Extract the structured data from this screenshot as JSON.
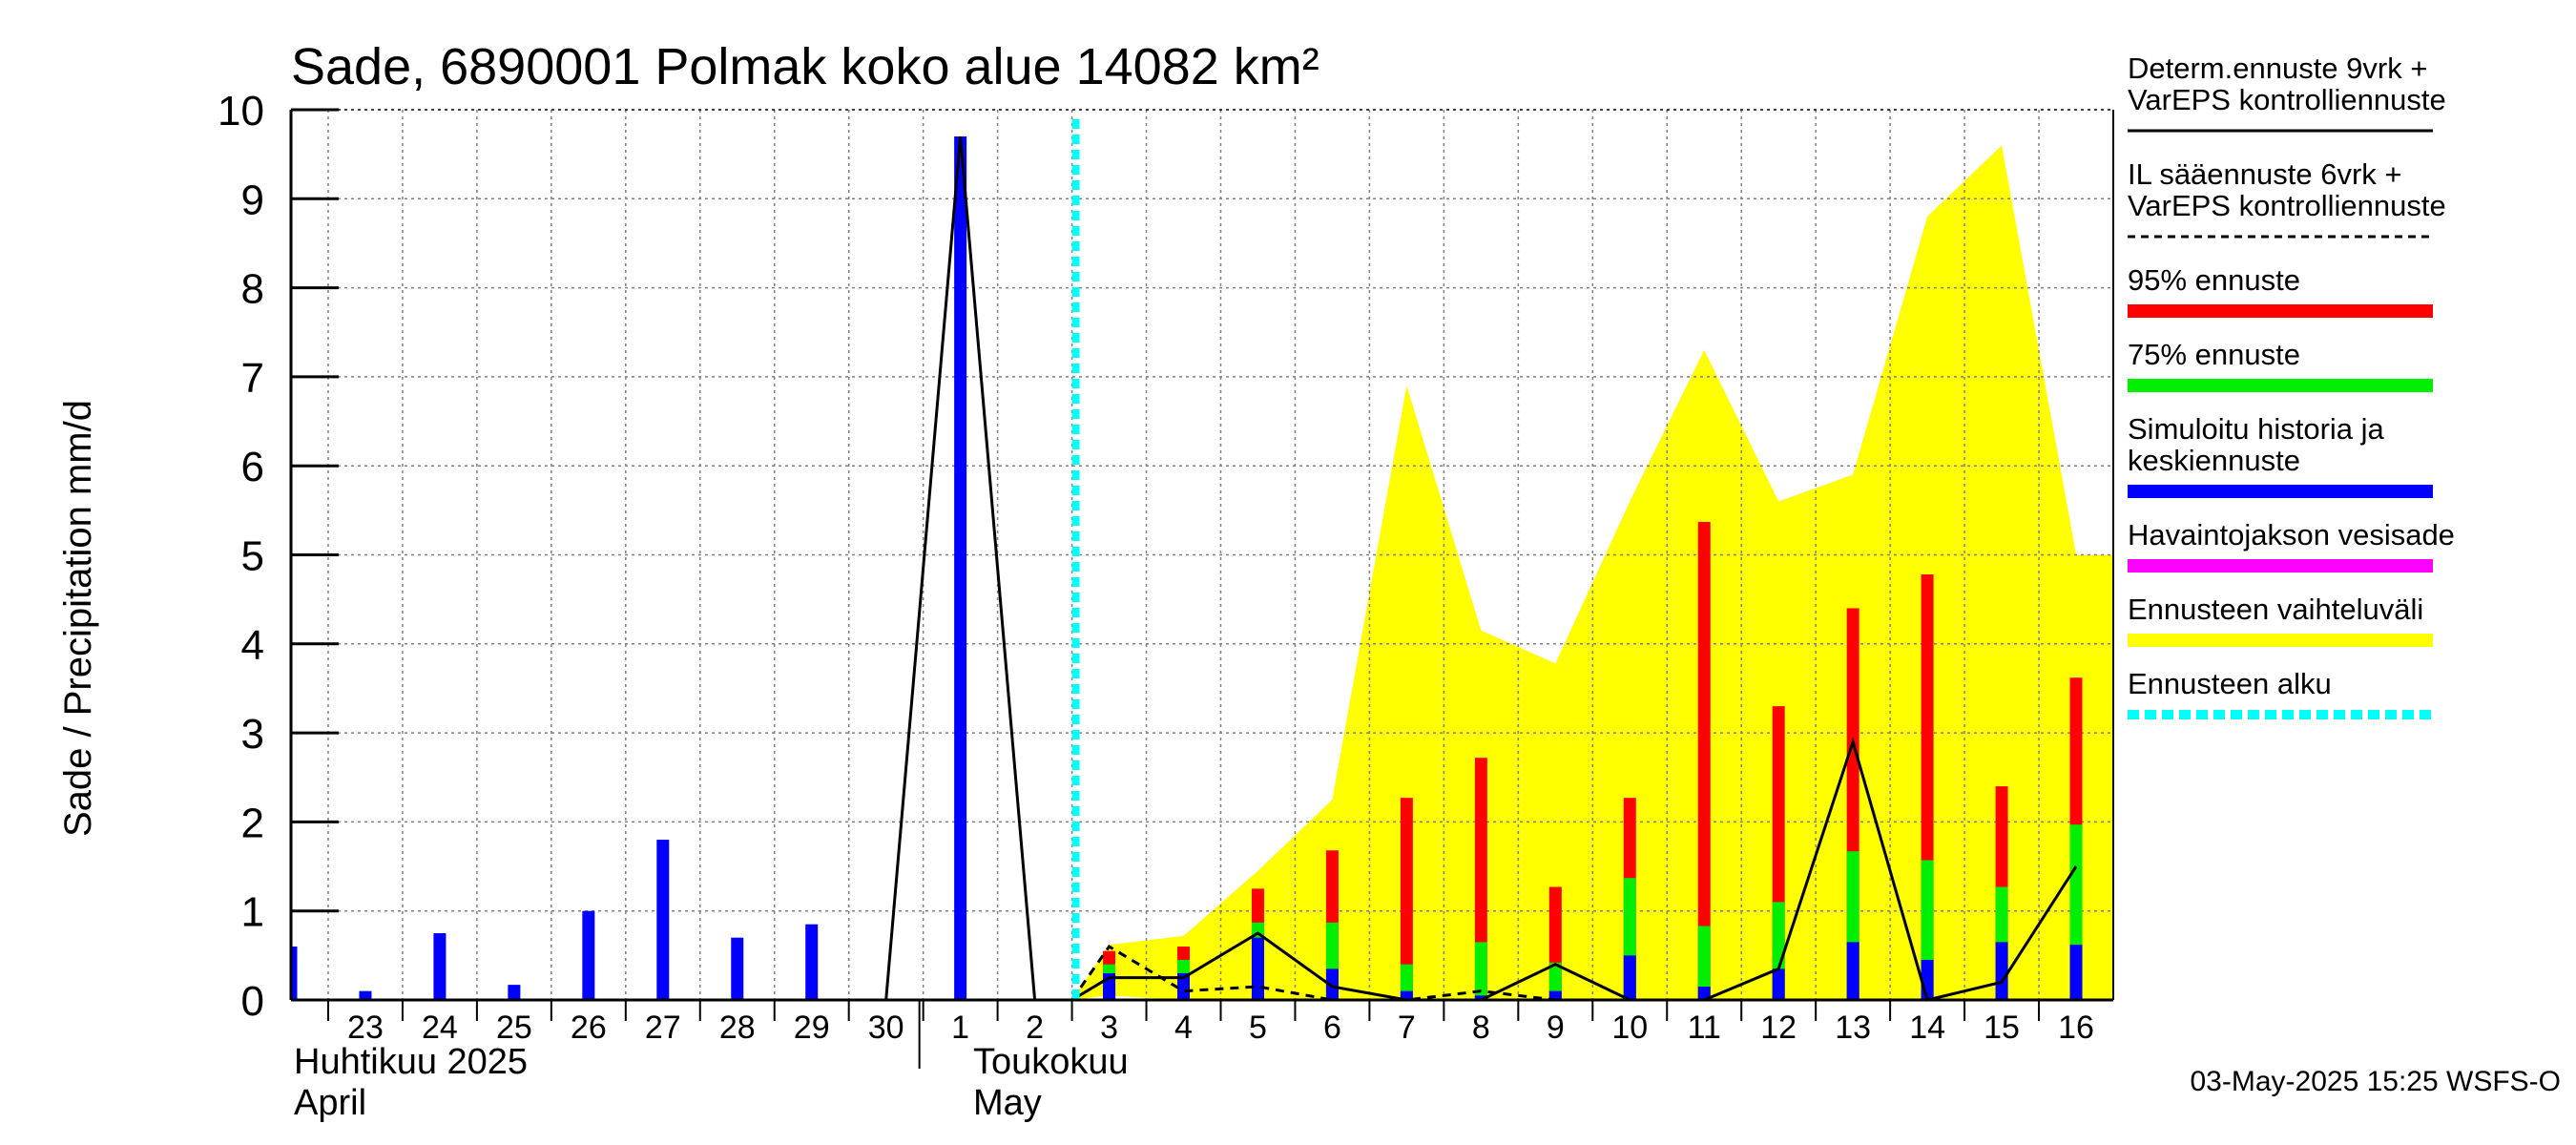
{
  "chart_data": {
    "type": "bar",
    "title": "Sade, 6890001 Polmak koko alue 14082 km²",
    "ylabel": "Sade / Precipitation   mm/d",
    "ylim": [
      0,
      10
    ],
    "yticks": [
      "0",
      "1",
      "2",
      "3",
      "4",
      "5",
      "6",
      "7",
      "8",
      "9",
      "10"
    ],
    "xlim": [
      22.5,
      47
    ],
    "day_ticks": [
      {
        "x": 23,
        "label": "23"
      },
      {
        "x": 24,
        "label": "24"
      },
      {
        "x": 25,
        "label": "25"
      },
      {
        "x": 26,
        "label": "26"
      },
      {
        "x": 27,
        "label": "27"
      },
      {
        "x": 28,
        "label": "28"
      },
      {
        "x": 29,
        "label": "29"
      },
      {
        "x": 30,
        "label": "30"
      },
      {
        "x": 31,
        "label": "1"
      },
      {
        "x": 32,
        "label": "2"
      },
      {
        "x": 33,
        "label": "3"
      },
      {
        "x": 34,
        "label": "4"
      },
      {
        "x": 35,
        "label": "5"
      },
      {
        "x": 36,
        "label": "6"
      },
      {
        "x": 37,
        "label": "7"
      },
      {
        "x": 38,
        "label": "8"
      },
      {
        "x": 39,
        "label": "9"
      },
      {
        "x": 40,
        "label": "10"
      },
      {
        "x": 41,
        "label": "11"
      },
      {
        "x": 42,
        "label": "12"
      },
      {
        "x": 43,
        "label": "13"
      },
      {
        "x": 44,
        "label": "14"
      },
      {
        "x": 45,
        "label": "15"
      },
      {
        "x": 46,
        "label": "16"
      }
    ],
    "month_labels": {
      "april_fi": "Huhtikuu  2025",
      "april_en": "April",
      "may_fi": "Toukokuu",
      "may_en": "May"
    },
    "forecast_start": 33,
    "history_bars": {
      "x": [
        22.5,
        23.5,
        24.5,
        25.5,
        26.5,
        27.5,
        28.5,
        29.5,
        31.5
      ],
      "values": [
        0.6,
        0.1,
        0.75,
        0.17,
        1.0,
        1.8,
        0.7,
        0.85,
        9.7
      ]
    },
    "forecast_bars": {
      "x": [
        33.5,
        34.5,
        35.5,
        36.5,
        37.5,
        38.5,
        39.5,
        40.5,
        41.5,
        42.5,
        43.5,
        44.5,
        45.5,
        46.5
      ],
      "p95": [
        0.55,
        0.6,
        1.25,
        1.68,
        2.27,
        2.72,
        1.27,
        2.27,
        5.37,
        3.3,
        4.4,
        4.78,
        2.4,
        3.62
      ],
      "p75": [
        0.4,
        0.45,
        0.87,
        0.87,
        0.4,
        0.65,
        0.42,
        1.37,
        0.83,
        1.1,
        1.67,
        1.57,
        1.27,
        1.97
      ],
      "median": [
        0.3,
        0.3,
        0.7,
        0.35,
        0.1,
        0.05,
        0.1,
        0.5,
        0.15,
        0.35,
        0.65,
        0.45,
        0.65,
        0.62
      ]
    },
    "determ_line": {
      "x": [
        22.5,
        23.5,
        24.5,
        25.5,
        26.5,
        27.5,
        28.5,
        29.5,
        30.5,
        31.5,
        32.5,
        33,
        33.5,
        34.5,
        35.5,
        36.5,
        37.5,
        38.5,
        39.5,
        40.5,
        41.5,
        42.5,
        43.5,
        44.5,
        45.5,
        46.5
      ],
      "values": [
        0,
        0,
        0,
        0,
        0,
        0,
        0,
        0,
        0,
        9.7,
        0,
        0,
        0.25,
        0.25,
        0.75,
        0.15,
        0,
        0,
        0.4,
        0,
        0,
        0.35,
        2.9,
        0,
        0.2,
        1.5
      ]
    },
    "il_line": {
      "x": [
        33,
        33.5,
        34.5,
        35.5,
        36.5,
        37.5,
        38.5,
        39.5,
        40.5,
        41
      ],
      "values": [
        0,
        0.6,
        0.1,
        0.15,
        0,
        0,
        0.1,
        0,
        0,
        0
      ]
    },
    "range_band": {
      "x": [
        33,
        33.5,
        34.5,
        35.5,
        36.5,
        37.5,
        38.5,
        39.5,
        40.5,
        41.5,
        42.5,
        43.5,
        44.5,
        45.5,
        46.5,
        47
      ],
      "upper": [
        0,
        0.62,
        0.72,
        1.45,
        2.25,
        6.9,
        4.15,
        3.78,
        5.6,
        7.3,
        5.6,
        5.9,
        8.8,
        9.6,
        5.0,
        5.0
      ],
      "lower": [
        0,
        0.05,
        0,
        0,
        0,
        0,
        0,
        0,
        0,
        0,
        0,
        0,
        0,
        0,
        0,
        0
      ]
    },
    "legend": [
      {
        "label": "Determ.ennuste 9vrk +",
        "label2": "VarEPS kontrolliennuste",
        "style": "solid-line",
        "color": "#000000"
      },
      {
        "label": "IL sääennuste 6vrk  +",
        "label2": "  VarEPS kontrolliennuste",
        "style": "dashed-line",
        "color": "#000000"
      },
      {
        "label": "95% ennuste",
        "style": "bar",
        "color": "#ff0000"
      },
      {
        "label": "75% ennuste",
        "style": "bar",
        "color": "#00ee00"
      },
      {
        "label": "Simuloitu historia ja",
        "label2": "keskiennuste",
        "style": "bar",
        "color": "#0000ff"
      },
      {
        "label": "Havaintojakson vesisade",
        "style": "bar",
        "color": "#ff00ff"
      },
      {
        "label": "Ennusteen vaihteluväli",
        "style": "bar",
        "color": "#ffff00"
      },
      {
        "label": "Ennusteen alku",
        "style": "dotted-line",
        "color": "#00ffff"
      }
    ],
    "colors": {
      "history": "#0000ff",
      "p95": "#ff0000",
      "p75": "#00ee00",
      "median": "#0000ff",
      "band": "#ffff00",
      "forecast_start": "#00ffff",
      "grid": "#808080"
    }
  },
  "footer": {
    "timestamp": "03-May-2025 15:25 WSFS-O"
  }
}
